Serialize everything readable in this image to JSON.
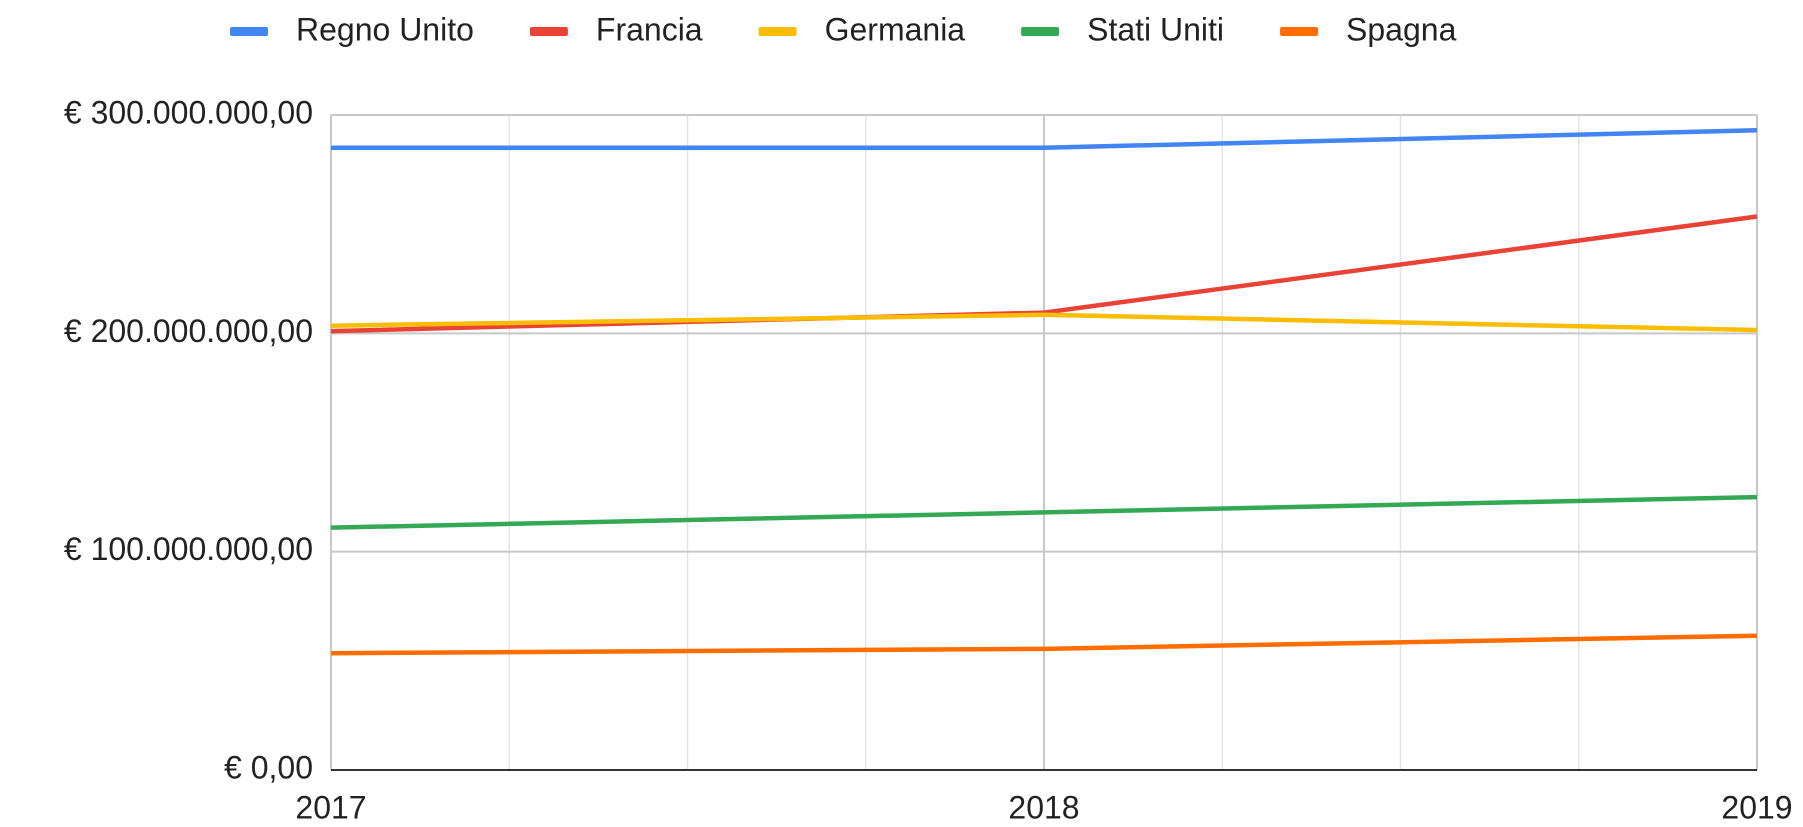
{
  "chart_data": {
    "type": "line",
    "x": [
      2017,
      2018,
      2019
    ],
    "series": [
      {
        "name": "Regno Unito",
        "color": "#4285f4",
        "values": [
          285000000,
          285000000,
          293000000
        ]
      },
      {
        "name": "Francia",
        "color": "#ea4335",
        "values": [
          201000000,
          209500000,
          253500000
        ]
      },
      {
        "name": "Germania",
        "color": "#fbbc04",
        "values": [
          203500000,
          208500000,
          201500000
        ]
      },
      {
        "name": "Stati Uniti",
        "color": "#34a853",
        "values": [
          111000000,
          118000000,
          125000000
        ]
      },
      {
        "name": "Spagna",
        "color": "#ff6d01",
        "values": [
          53500000,
          55500000,
          61500000
        ]
      }
    ],
    "xlim": [
      2017,
      2019
    ],
    "xticks": [
      2017,
      2018,
      2019
    ],
    "ylim": [
      0,
      300000000
    ],
    "yticks": [
      {
        "value": 0,
        "label": "€ 0,00"
      },
      {
        "value": 100000000,
        "label": "€ 100.000.000,00"
      },
      {
        "value": 200000000,
        "label": "€ 200.000.000,00"
      },
      {
        "value": 300000000,
        "label": "€ 300.000.000,00"
      }
    ],
    "grid": true,
    "legend": "top"
  }
}
